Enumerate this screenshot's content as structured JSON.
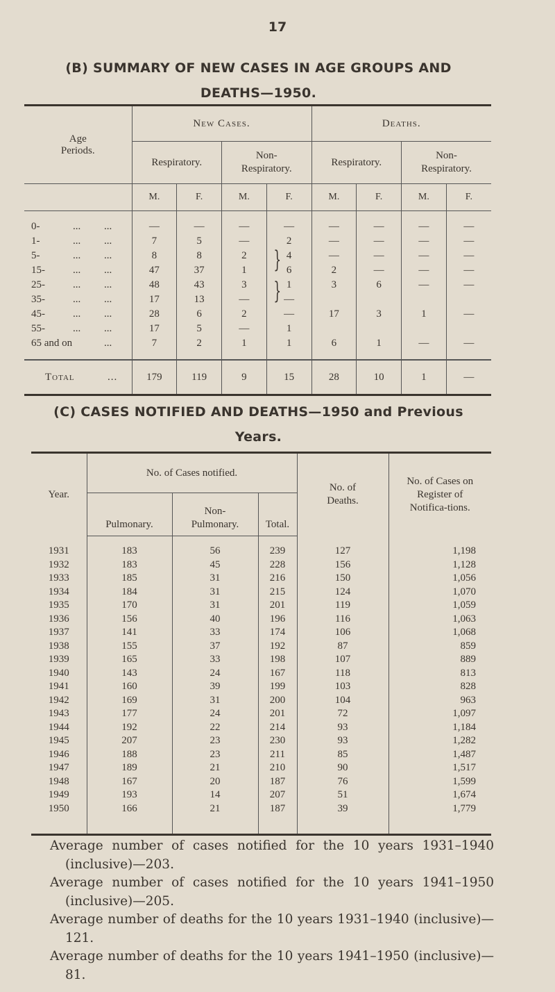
{
  "page_number": "17",
  "section_b": {
    "title_line1": "(B) SUMMARY OF NEW CASES IN AGE GROUPS AND",
    "title_line2": "DEATHS—1950.",
    "headers": {
      "age_periods": "Age Periods.",
      "new_cases": "New Cases.",
      "deaths": "Deaths.",
      "respiratory": "Respiratory.",
      "non_respiratory": "Non-Respiratory.",
      "m": "M.",
      "f": "F."
    },
    "dots": "...",
    "rows": [
      {
        "age": "0-",
        "values": [
          "—",
          "—",
          "—",
          "—",
          "—",
          "—",
          "—",
          "—"
        ]
      },
      {
        "age": "1-",
        "values": [
          "7",
          "5",
          "—",
          "2",
          "—",
          "—",
          "—",
          "—"
        ]
      },
      {
        "age": "5-",
        "values": [
          "8",
          "8",
          "2",
          "4",
          "—",
          "—",
          "—",
          "—"
        ]
      },
      {
        "age": "15-",
        "values": [
          "47",
          "37",
          "1",
          "6",
          "2",
          "—",
          "—",
          "—"
        ]
      },
      {
        "age": "25-",
        "values": [
          "48",
          "43",
          "3",
          "1",
          "3",
          "6",
          "—",
          "—"
        ]
      },
      {
        "age": "35-",
        "values": [
          "17",
          "13",
          "—",
          "—",
          "",
          "",
          "",
          ""
        ]
      },
      {
        "age": "45-",
        "values": [
          "28",
          "6",
          "2",
          "—",
          "17",
          "3",
          "1",
          "—"
        ]
      },
      {
        "age": "55-",
        "values": [
          "17",
          "5",
          "—",
          "1",
          "",
          "",
          "",
          ""
        ]
      },
      {
        "age": "65 and on",
        "values": [
          "7",
          "2",
          "1",
          "1",
          "6",
          "1",
          "—",
          "—"
        ]
      }
    ],
    "total": {
      "label": "Total",
      "values": [
        "179",
        "119",
        "9",
        "15",
        "28",
        "10",
        "1",
        "—"
      ]
    }
  },
  "section_c": {
    "title_line1": "(C) CASES NOTIFIED AND DEATHS—1950 and Previous",
    "title_line2": "Years.",
    "headers": {
      "year": "Year.",
      "cases_notified": "No. of Cases notified.",
      "pulmonary": "Pulmonary.",
      "non_pulmonary": "Non-Pulmonary.",
      "total": "Total.",
      "deaths": "No. of Deaths.",
      "register": "No. of Cases on Register of Notifica-tions."
    },
    "rows": [
      [
        "1931",
        "183",
        "56",
        "239",
        "127",
        "1,198"
      ],
      [
        "1932",
        "183",
        "45",
        "228",
        "156",
        "1,128"
      ],
      [
        "1933",
        "185",
        "31",
        "216",
        "150",
        "1,056"
      ],
      [
        "1934",
        "184",
        "31",
        "215",
        "124",
        "1,070"
      ],
      [
        "1935",
        "170",
        "31",
        "201",
        "119",
        "1,059"
      ],
      [
        "1936",
        "156",
        "40",
        "196",
        "116",
        "1,063"
      ],
      [
        "1937",
        "141",
        "33",
        "174",
        "106",
        "1,068"
      ],
      [
        "1938",
        "155",
        "37",
        "192",
        "87",
        "859"
      ],
      [
        "1939",
        "165",
        "33",
        "198",
        "107",
        "889"
      ],
      [
        "1940",
        "143",
        "24",
        "167",
        "118",
        "813"
      ],
      [
        "1941",
        "160",
        "39",
        "199",
        "103",
        "828"
      ],
      [
        "1942",
        "169",
        "31",
        "200",
        "104",
        "963"
      ],
      [
        "1943",
        "177",
        "24",
        "201",
        "72",
        "1,097"
      ],
      [
        "1944",
        "192",
        "22",
        "214",
        "93",
        "1,184"
      ],
      [
        "1945",
        "207",
        "23",
        "230",
        "93",
        "1,282"
      ],
      [
        "1946",
        "188",
        "23",
        "211",
        "85",
        "1,487"
      ],
      [
        "1947",
        "189",
        "21",
        "210",
        "90",
        "1,517"
      ],
      [
        "1948",
        "167",
        "20",
        "187",
        "76",
        "1,599"
      ],
      [
        "1949",
        "193",
        "14",
        "207",
        "51",
        "1,674"
      ],
      [
        "1950",
        "166",
        "21",
        "187",
        "39",
        "1,779"
      ]
    ]
  },
  "notes": [
    "Average number of cases notified for the 10 years 1931–1940 (inclusive)—203.",
    "Average number of cases notified for the 10 years 1941–1950 (inclusive)—205.",
    "Average number of deaths for the 10 years 1931–1940 (inclusive)—121.",
    "Average number of deaths for the 10 years 1941–1950 (inclusive)—81."
  ]
}
